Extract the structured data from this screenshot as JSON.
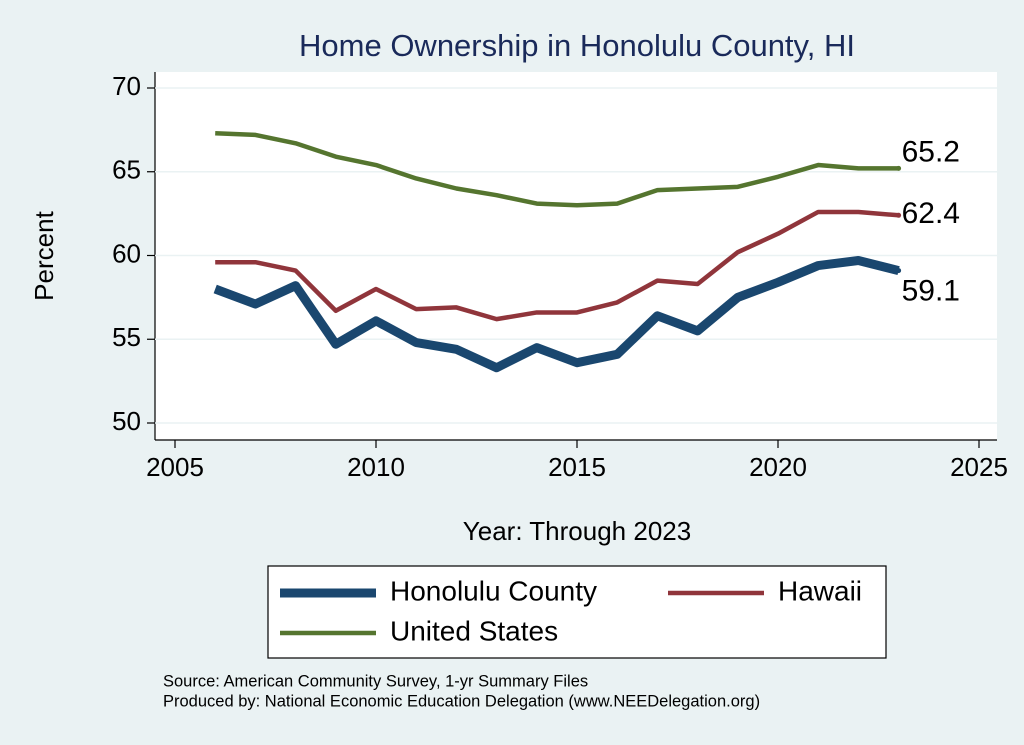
{
  "chart_data": {
    "type": "line",
    "title": "Home Ownership in Honolulu County, HI",
    "x_label": "Year: Through 2023",
    "y_label": "Percent",
    "x": [
      2006,
      2007,
      2008,
      2009,
      2010,
      2011,
      2012,
      2013,
      2014,
      2015,
      2016,
      2017,
      2018,
      2019,
      2020,
      2021,
      2022,
      2023
    ],
    "series": [
      {
        "name": "Honolulu County",
        "color": "#1a476f",
        "values": [
          58.0,
          57.1,
          58.2,
          54.7,
          56.1,
          54.8,
          54.4,
          53.3,
          54.5,
          53.6,
          54.1,
          56.4,
          55.5,
          57.5,
          58.4,
          59.4,
          59.7,
          59.1
        ]
      },
      {
        "name": "Hawaii",
        "color": "#90353b",
        "values": [
          59.6,
          59.6,
          59.1,
          56.7,
          58.0,
          56.8,
          56.9,
          56.2,
          56.6,
          56.6,
          57.2,
          58.5,
          58.3,
          60.2,
          61.3,
          62.6,
          62.6,
          62.4
        ]
      },
      {
        "name": "United States",
        "color": "#55752f",
        "values": [
          67.3,
          67.2,
          66.7,
          65.9,
          65.4,
          64.6,
          64.0,
          63.6,
          63.1,
          63.0,
          63.1,
          63.9,
          64.0,
          64.1,
          64.7,
          65.4,
          65.2,
          65.2
        ]
      }
    ],
    "xlim": [
      2005,
      2025
    ],
    "xticks": [
      2005,
      2010,
      2015,
      2020,
      2025
    ],
    "ylim": [
      50,
      70
    ],
    "yticks": [
      50,
      55,
      60,
      65,
      70
    ],
    "grid": true,
    "legend_position": "bottom",
    "notes": [
      "Source: American Community Survey, 1-yr Summary Files",
      "Produced by: National Economic Education Delegation (www.NEEDelegation.org)"
    ]
  }
}
